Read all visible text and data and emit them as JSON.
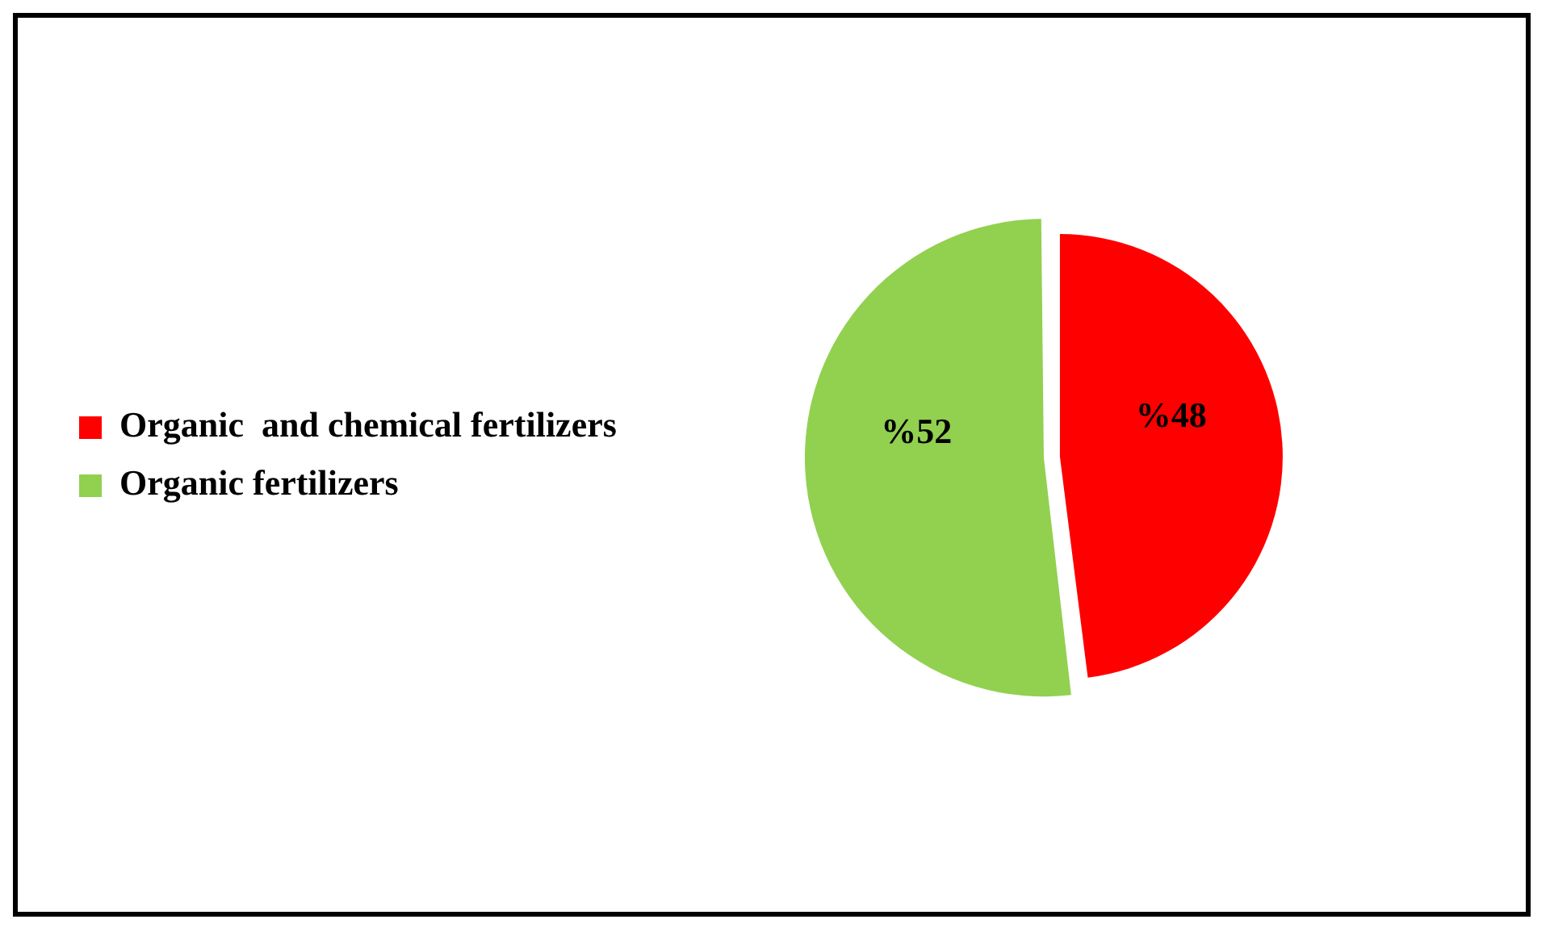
{
  "chart_data": {
    "type": "pie",
    "categories": [
      "Organic  and chemical fertilizers",
      "Organic fertilizers"
    ],
    "values": [
      48,
      52
    ],
    "colors": [
      "#ff0000",
      "#92d050"
    ],
    "value_labels": [
      "%48",
      "%52"
    ],
    "legend": "left"
  }
}
